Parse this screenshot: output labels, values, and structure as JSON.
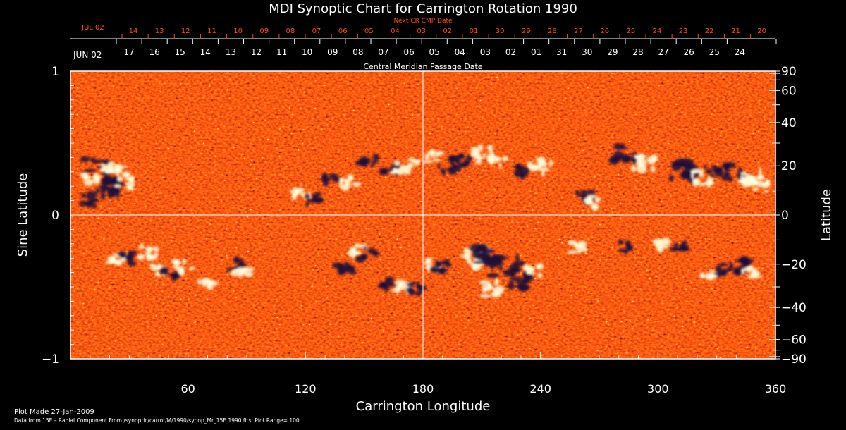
{
  "chart_data": {
    "type": "heatmap",
    "title": "MDI Synoptic Chart for Carrington Rotation 1990",
    "xlabel": "Carrington Longitude",
    "ylabel_left": "Sine Latitude",
    "ylabel_right": "Latitude",
    "xlim": [
      0,
      360
    ],
    "ylim": [
      -1,
      1
    ],
    "x_ticks": [
      60,
      120,
      180,
      240,
      300,
      360
    ],
    "y_ticks_left": [
      {
        "value": 1,
        "label": "1"
      },
      {
        "value": 0,
        "label": "0"
      },
      {
        "value": -1,
        "label": "−1"
      }
    ],
    "y_ticks_right": [
      {
        "deg": 90,
        "label": "90"
      },
      {
        "deg": 60,
        "label": "60"
      },
      {
        "deg": 40,
        "label": "40"
      },
      {
        "deg": 20,
        "label": "20"
      },
      {
        "deg": 0,
        "label": "0"
      },
      {
        "deg": -20,
        "label": "−20"
      },
      {
        "deg": -40,
        "label": "−40"
      },
      {
        "deg": -60,
        "label": "−60"
      },
      {
        "deg": -90,
        "label": "−90"
      }
    ],
    "top_axis_cmp": {
      "caption": "Central Meridian Passage Date",
      "start_label": "JUN 02",
      "labels": [
        "17",
        "16",
        "15",
        "14",
        "13",
        "12",
        "11",
        "10",
        "09",
        "08",
        "07",
        "06",
        "05",
        "04",
        "03",
        "02",
        "01",
        "31",
        "30",
        "29",
        "28",
        "27",
        "26",
        "25",
        "24"
      ]
    },
    "top_axis_next": {
      "caption": "Next CR CMP Date",
      "start_label": "JUL 02",
      "labels": [
        "14",
        "13",
        "12",
        "11",
        "10",
        "09",
        "08",
        "07",
        "06",
        "05",
        "04",
        "03",
        "02",
        "01",
        "30",
        "29",
        "28",
        "27",
        "26",
        "25",
        "24",
        "23",
        "22",
        "21",
        "20"
      ]
    },
    "colorbar": {
      "plot_range": 100,
      "colors": [
        "#1c0e3a",
        "#d63a0c",
        "#ff5a14",
        "#ffffdc"
      ]
    },
    "active_regions": [
      {
        "lon": 13,
        "sinlat": 0.34,
        "pol": "neg",
        "r": 4
      },
      {
        "lon": 20,
        "sinlat": 0.32,
        "pol": "pos",
        "r": 3
      },
      {
        "lon": 26,
        "sinlat": 0.3,
        "pol": "pos",
        "r": 3
      },
      {
        "lon": 10,
        "sinlat": 0.24,
        "pol": "pos",
        "r": 3
      },
      {
        "lon": 17,
        "sinlat": 0.2,
        "pol": "neg",
        "r": 5
      },
      {
        "lon": 22,
        "sinlat": 0.18,
        "pol": "neg",
        "r": 4
      },
      {
        "lon": 10,
        "sinlat": 0.1,
        "pol": "neg",
        "r": 3
      },
      {
        "lon": 28,
        "sinlat": 0.22,
        "pol": "pos",
        "r": 3
      },
      {
        "lon": 118,
        "sinlat": 0.15,
        "pol": "pos",
        "r": 3
      },
      {
        "lon": 123,
        "sinlat": 0.11,
        "pol": "neg",
        "r": 3
      },
      {
        "lon": 134,
        "sinlat": 0.24,
        "pol": "neg",
        "r": 3
      },
      {
        "lon": 142,
        "sinlat": 0.23,
        "pol": "pos",
        "r": 3
      },
      {
        "lon": 152,
        "sinlat": 0.38,
        "pol": "neg",
        "r": 3
      },
      {
        "lon": 163,
        "sinlat": 0.32,
        "pol": "neg",
        "r": 3
      },
      {
        "lon": 168,
        "sinlat": 0.32,
        "pol": "pos",
        "r": 3
      },
      {
        "lon": 175,
        "sinlat": 0.36,
        "pol": "pos",
        "r": 2
      },
      {
        "lon": 185,
        "sinlat": 0.4,
        "pol": "pos",
        "r": 3
      },
      {
        "lon": 192,
        "sinlat": 0.34,
        "pol": "neg",
        "r": 4
      },
      {
        "lon": 200,
        "sinlat": 0.37,
        "pol": "neg",
        "r": 3
      },
      {
        "lon": 210,
        "sinlat": 0.42,
        "pol": "pos",
        "r": 4
      },
      {
        "lon": 218,
        "sinlat": 0.38,
        "pol": "pos",
        "r": 3
      },
      {
        "lon": 230,
        "sinlat": 0.3,
        "pol": "neg",
        "r": 3
      },
      {
        "lon": 240,
        "sinlat": 0.34,
        "pol": "pos",
        "r": 4
      },
      {
        "lon": 262,
        "sinlat": 0.12,
        "pol": "neg",
        "r": 3
      },
      {
        "lon": 266,
        "sinlat": 0.09,
        "pol": "pos",
        "r": 3
      },
      {
        "lon": 283,
        "sinlat": 0.43,
        "pol": "neg",
        "r": 4
      },
      {
        "lon": 293,
        "sinlat": 0.36,
        "pol": "pos",
        "r": 4
      },
      {
        "lon": 313,
        "sinlat": 0.3,
        "pol": "neg",
        "r": 5
      },
      {
        "lon": 322,
        "sinlat": 0.26,
        "pol": "pos",
        "r": 4
      },
      {
        "lon": 328,
        "sinlat": 0.3,
        "pol": "neg",
        "r": 3
      },
      {
        "lon": 340,
        "sinlat": 0.3,
        "pol": "neg",
        "r": 4
      },
      {
        "lon": 348,
        "sinlat": 0.25,
        "pol": "pos",
        "r": 4
      },
      {
        "lon": 352,
        "sinlat": 0.2,
        "pol": "pos",
        "r": 3
      },
      {
        "lon": 24,
        "sinlat": -0.32,
        "pol": "pos",
        "r": 3
      },
      {
        "lon": 30,
        "sinlat": -0.3,
        "pol": "neg",
        "r": 3
      },
      {
        "lon": 40,
        "sinlat": -0.26,
        "pol": "pos",
        "r": 3
      },
      {
        "lon": 44,
        "sinlat": -0.38,
        "pol": "pos",
        "r": 3
      },
      {
        "lon": 50,
        "sinlat": -0.42,
        "pol": "neg",
        "r": 3
      },
      {
        "lon": 58,
        "sinlat": -0.36,
        "pol": "pos",
        "r": 3
      },
      {
        "lon": 70,
        "sinlat": -0.48,
        "pol": "pos",
        "r": 3
      },
      {
        "lon": 84,
        "sinlat": -0.35,
        "pol": "neg",
        "r": 3
      },
      {
        "lon": 88,
        "sinlat": -0.4,
        "pol": "pos",
        "r": 3
      },
      {
        "lon": 140,
        "sinlat": -0.36,
        "pol": "neg",
        "r": 3
      },
      {
        "lon": 147,
        "sinlat": -0.25,
        "pol": "pos",
        "r": 3
      },
      {
        "lon": 152,
        "sinlat": -0.27,
        "pol": "neg",
        "r": 3
      },
      {
        "lon": 162,
        "sinlat": -0.48,
        "pol": "neg",
        "r": 3
      },
      {
        "lon": 170,
        "sinlat": -0.5,
        "pol": "pos",
        "r": 3
      },
      {
        "lon": 177,
        "sinlat": -0.51,
        "pol": "neg",
        "r": 3
      },
      {
        "lon": 186,
        "sinlat": -0.34,
        "pol": "pos",
        "r": 3
      },
      {
        "lon": 190,
        "sinlat": -0.36,
        "pol": "neg",
        "r": 3
      },
      {
        "lon": 206,
        "sinlat": -0.3,
        "pol": "pos",
        "r": 5
      },
      {
        "lon": 214,
        "sinlat": -0.28,
        "pol": "neg",
        "r": 5
      },
      {
        "lon": 222,
        "sinlat": -0.36,
        "pol": "neg",
        "r": 5
      },
      {
        "lon": 228,
        "sinlat": -0.46,
        "pol": "neg",
        "r": 4
      },
      {
        "lon": 216,
        "sinlat": -0.52,
        "pol": "pos",
        "r": 4
      },
      {
        "lon": 236,
        "sinlat": -0.38,
        "pol": "pos",
        "r": 3
      },
      {
        "lon": 260,
        "sinlat": -0.22,
        "pol": "pos",
        "r": 3
      },
      {
        "lon": 282,
        "sinlat": -0.22,
        "pol": "neg",
        "r": 3
      },
      {
        "lon": 302,
        "sinlat": -0.2,
        "pol": "pos",
        "r": 3
      },
      {
        "lon": 312,
        "sinlat": -0.22,
        "pol": "neg",
        "r": 3
      },
      {
        "lon": 326,
        "sinlat": -0.4,
        "pol": "pos",
        "r": 3
      },
      {
        "lon": 334,
        "sinlat": -0.38,
        "pol": "neg",
        "r": 3
      },
      {
        "lon": 342,
        "sinlat": -0.36,
        "pol": "neg",
        "r": 4
      },
      {
        "lon": 347,
        "sinlat": -0.4,
        "pol": "pos",
        "r": 3
      }
    ]
  },
  "footer": {
    "plot_made": "Plot Made 27-Jan-2009",
    "data_source": "Data from 15E – Radial Component From /synoptic/carrot/M/1990/synop_Mr_15E.1990.fits; Plot Range=  100"
  }
}
